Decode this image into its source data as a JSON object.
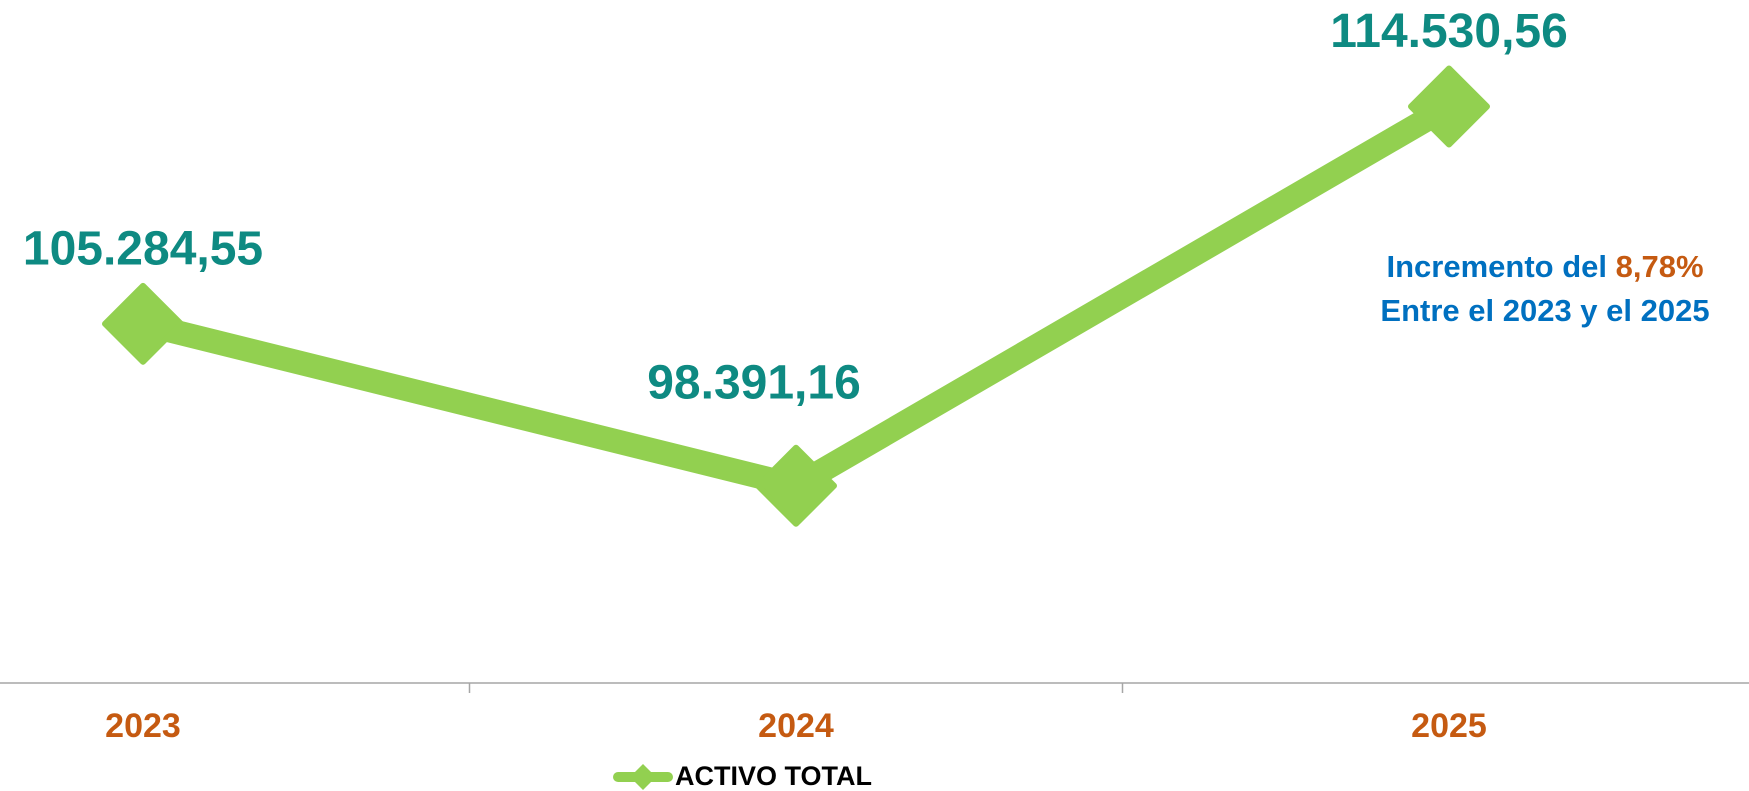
{
  "chart_data": {
    "type": "line",
    "categories": [
      "2023",
      "2024",
      "2025"
    ],
    "series": [
      {
        "name": "ACTIVO TOTAL",
        "color": "#92d050",
        "values": [
          105284.55,
          98391.16,
          114530.56
        ],
        "value_labels": [
          "105.284,55",
          "98.391,16",
          "114.530,56"
        ]
      }
    ],
    "ylim": [
      90000,
      120000
    ],
    "annotation": {
      "text": "Incremento del",
      "highlight": "8,78%",
      "line2": "Entre el 2023 y el 2025"
    },
    "legend": "bottom"
  }
}
